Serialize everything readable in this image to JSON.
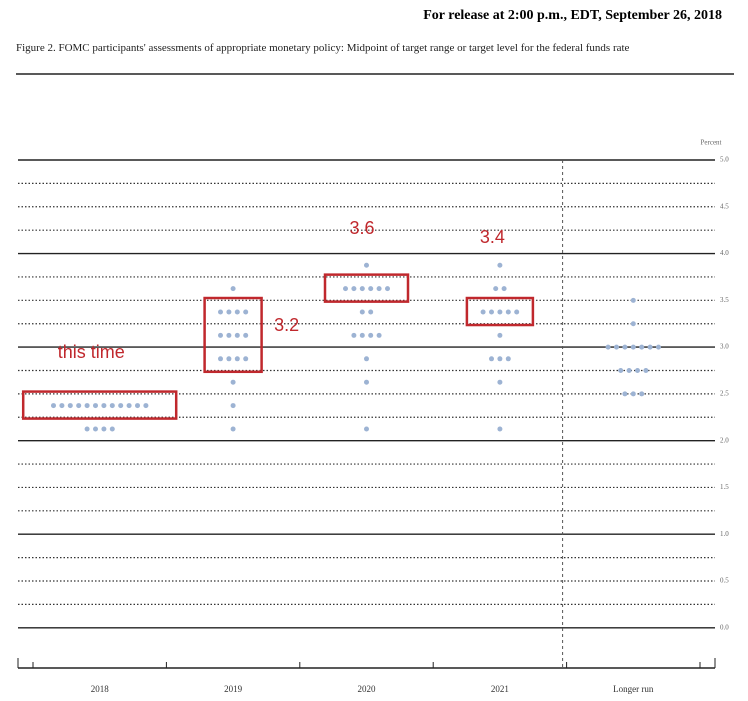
{
  "chart_data": {
    "type": "dot",
    "release": "For release at 2:00 p.m., EDT, September 26, 2018",
    "title": "Figure 2. FOMC participants' assessments of appropriate monetary policy: Midpoint of target range or target level for the federal funds rate",
    "y_label": "Percent",
    "categories": [
      "2018",
      "2019",
      "2020",
      "2021",
      "Longer run"
    ],
    "color": "#9db3d3",
    "dots": [
      [
        {
          "value": 2.375,
          "count": 12
        },
        {
          "value": 2.125,
          "count": 4
        }
      ],
      [
        {
          "value": 3.625,
          "count": 1
        },
        {
          "value": 3.375,
          "count": 4
        },
        {
          "value": 3.125,
          "count": 4
        },
        {
          "value": 2.875,
          "count": 4
        },
        {
          "value": 2.625,
          "count": 1
        },
        {
          "value": 2.375,
          "count": 1
        },
        {
          "value": 2.125,
          "count": 1
        }
      ],
      [
        {
          "value": 3.875,
          "count": 1
        },
        {
          "value": 3.625,
          "count": 6
        },
        {
          "value": 3.375,
          "count": 2
        },
        {
          "value": 3.125,
          "count": 4
        },
        {
          "value": 2.875,
          "count": 1
        },
        {
          "value": 2.625,
          "count": 1
        },
        {
          "value": 2.125,
          "count": 1
        }
      ],
      [
        {
          "value": 3.875,
          "count": 1
        },
        {
          "value": 3.625,
          "count": 2
        },
        {
          "value": 3.375,
          "count": 5
        },
        {
          "value": 3.125,
          "count": 1
        },
        {
          "value": 2.875,
          "count": 3
        },
        {
          "value": 2.625,
          "count": 1
        },
        {
          "value": 2.125,
          "count": 1
        }
      ],
      [
        {
          "value": 3.5,
          "count": 1
        },
        {
          "value": 3.25,
          "count": 1
        },
        {
          "value": 3.0,
          "count": 7
        },
        {
          "value": 2.75,
          "count": 4
        },
        {
          "value": 2.5,
          "count": 3
        }
      ]
    ],
    "ylim": [
      -0.43,
      5.0
    ],
    "yticks": [
      {
        "value": 0,
        "label": "0.0"
      },
      0.5,
      {
        "value": 1,
        "label": "1.0"
      },
      1.5,
      {
        "value": 2,
        "label": "2.0"
      },
      2.5,
      {
        "value": 3,
        "label": "3.0"
      },
      3.5,
      {
        "value": 4,
        "label": "4.0"
      },
      4.5,
      {
        "value": 5,
        "label": "5.0"
      }
    ],
    "y_minor_ticks": [
      0.25,
      0.75,
      1.25,
      1.75,
      2.25,
      2.75,
      3.25,
      3.75,
      4.25,
      4.75
    ],
    "annotations": [
      {
        "text": "this time",
        "category": 0,
        "from": 2.375,
        "to": 2.375
      },
      {
        "text": "3.2",
        "category": 1,
        "from": 2.875,
        "to": 3.375
      },
      {
        "text": "3.6",
        "category": 2,
        "from": 3.625,
        "to": 3.625
      },
      {
        "text": "3.4",
        "category": 3,
        "from": 3.375,
        "to": 3.375
      }
    ]
  }
}
